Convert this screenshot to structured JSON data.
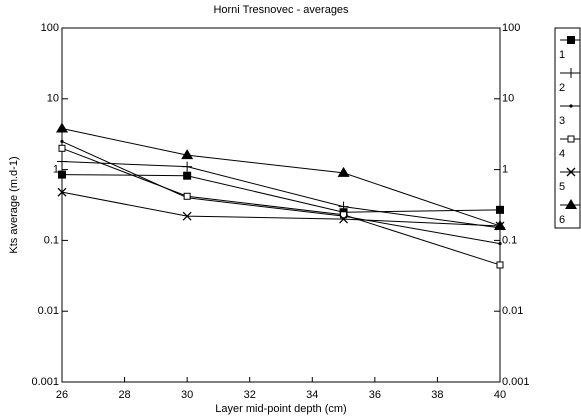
{
  "chart_data": {
    "type": "line",
    "title": "Horni Tresnovec - averages",
    "x_label": "Layer mid-point depth (cm)",
    "y_label": "Kts average (m.d-1)",
    "x": [
      26,
      30,
      35,
      40
    ],
    "xlim": [
      26,
      40
    ],
    "xticks": [
      26,
      28,
      30,
      32,
      34,
      36,
      38,
      40
    ],
    "ylim": [
      0.001,
      100
    ],
    "yticks": [
      0.001,
      0.01,
      0.1,
      1,
      10,
      100
    ],
    "log_y": true,
    "mirror_y_axis": true,
    "legend": "right",
    "series": [
      {
        "name": "1",
        "color": "#000000",
        "marker": "square",
        "values": [
          0.85,
          0.82,
          0.25,
          0.27
        ]
      },
      {
        "name": "2",
        "color": "#000000",
        "marker": "plus",
        "values": [
          1.3,
          1.1,
          0.3,
          0.15
        ]
      },
      {
        "name": "3",
        "color": "#000000",
        "marker": "dot",
        "values": [
          2.5,
          0.4,
          0.22,
          0.09
        ]
      },
      {
        "name": "4",
        "color": "#000000",
        "marker": "open-square",
        "values": [
          2.0,
          0.42,
          0.23,
          0.045
        ]
      },
      {
        "name": "5",
        "color": "#000000",
        "marker": "x",
        "values": [
          0.48,
          0.22,
          0.2,
          0.16
        ]
      },
      {
        "name": "6",
        "color": "#000000",
        "marker": "triangle",
        "values": [
          3.8,
          1.6,
          0.9,
          0.16
        ]
      }
    ]
  }
}
